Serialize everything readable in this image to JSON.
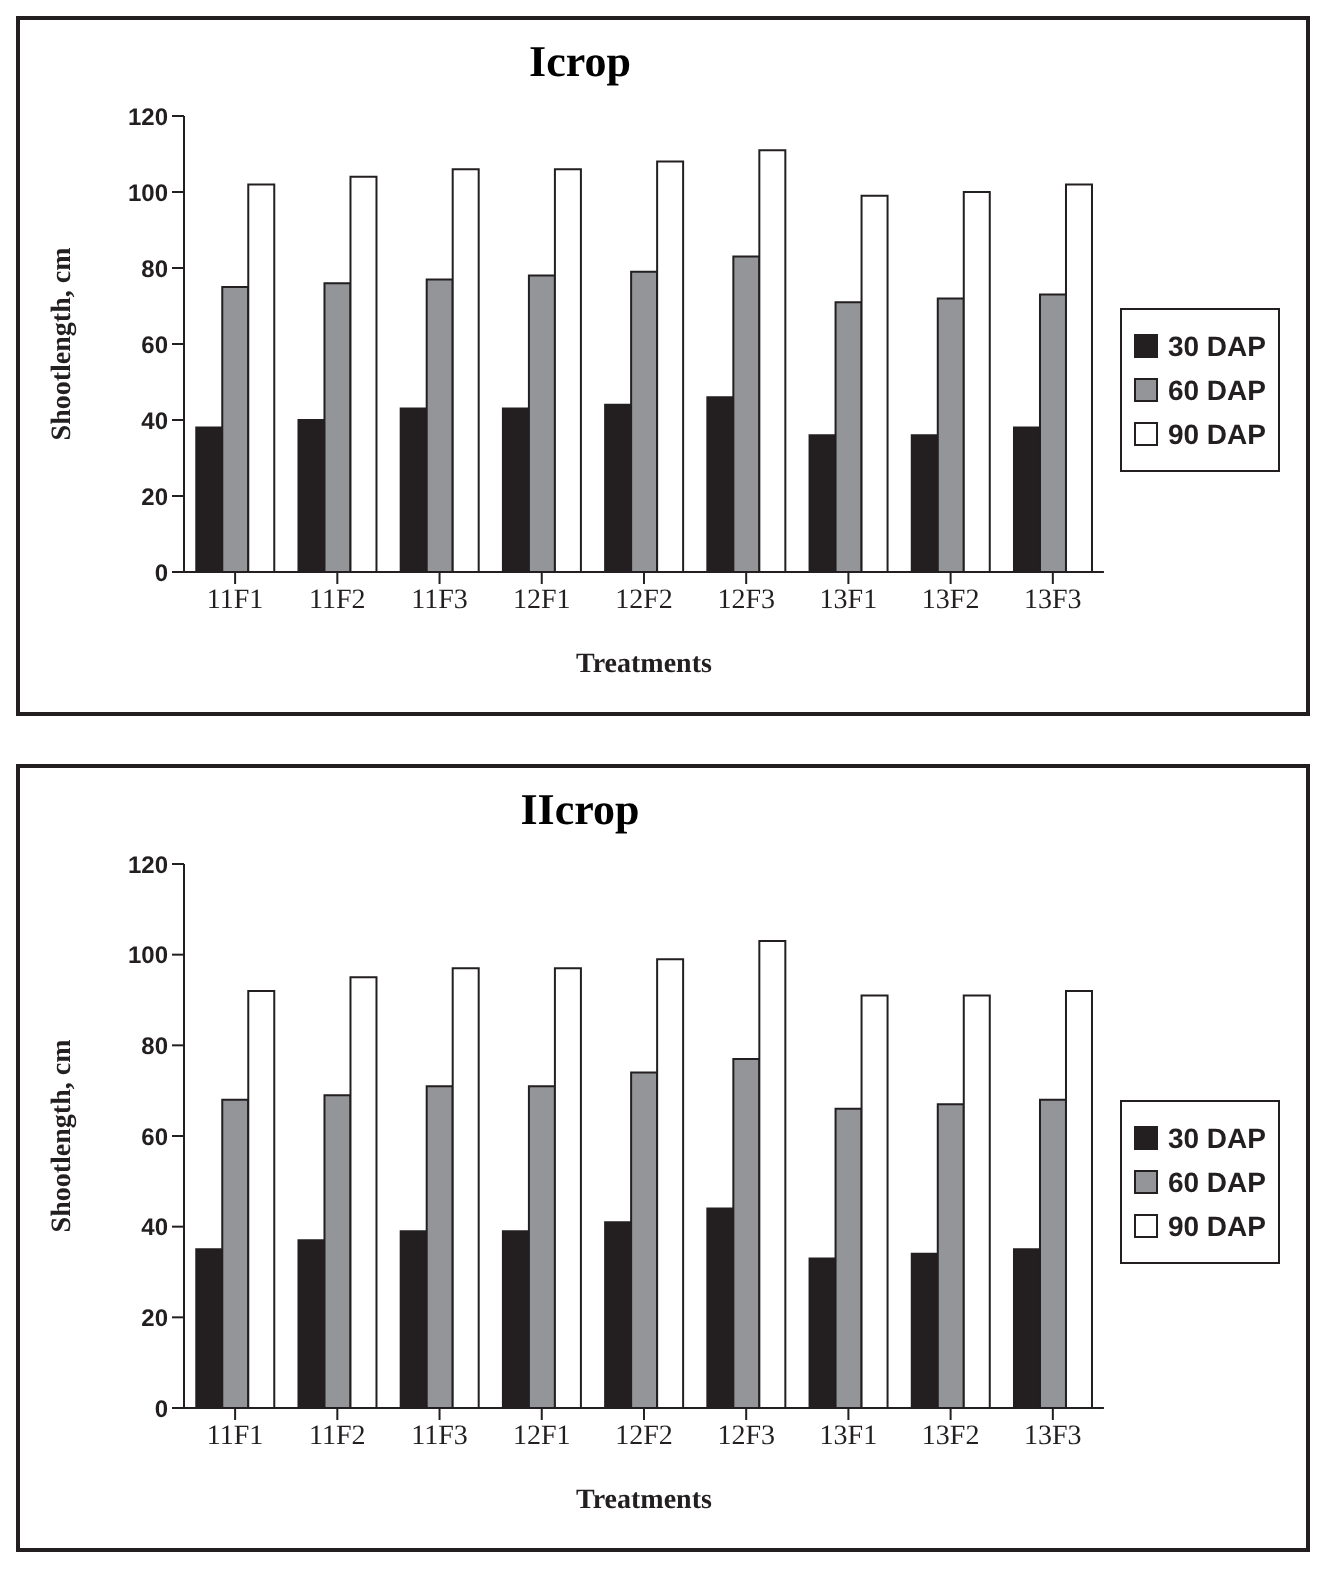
{
  "chart_data": [
    {
      "type": "bar",
      "title": "Icrop",
      "xlabel": "Treatments",
      "ylabel": "Shootlength, cm",
      "categories": [
        "11F1",
        "11F2",
        "11F3",
        "12F1",
        "12F2",
        "12F3",
        "13F1",
        "13F2",
        "13F3"
      ],
      "ylim": [
        0,
        120
      ],
      "yticks": [
        0,
        20,
        40,
        60,
        80,
        100,
        120
      ],
      "grid": false,
      "legend": "right",
      "series": [
        {
          "name": "30 DAP",
          "color": "#231f20",
          "values": [
            38,
            40,
            43,
            43,
            44,
            46,
            36,
            36,
            38
          ]
        },
        {
          "name": "60 DAP",
          "color": "#939598",
          "values": [
            75,
            76,
            77,
            78,
            79,
            83,
            71,
            72,
            73
          ]
        },
        {
          "name": "90 DAP",
          "color": "#ffffff",
          "values": [
            102,
            104,
            106,
            106,
            108,
            111,
            99,
            100,
            102
          ]
        }
      ]
    },
    {
      "type": "bar",
      "title": "IIcrop",
      "xlabel": "Treatments",
      "ylabel": "Shootlength, cm",
      "categories": [
        "11F1",
        "11F2",
        "11F3",
        "12F1",
        "12F2",
        "12F3",
        "13F1",
        "13F2",
        "13F3"
      ],
      "ylim": [
        0,
        120
      ],
      "yticks": [
        0,
        20,
        40,
        60,
        80,
        100,
        120
      ],
      "grid": false,
      "legend": "right",
      "series": [
        {
          "name": "30 DAP",
          "color": "#231f20",
          "values": [
            35,
            37,
            39,
            39,
            41,
            44,
            33,
            34,
            35
          ]
        },
        {
          "name": "60 DAP",
          "color": "#939598",
          "values": [
            68,
            69,
            71,
            71,
            74,
            77,
            66,
            67,
            68
          ]
        },
        {
          "name": "90 DAP",
          "color": "#ffffff",
          "values": [
            92,
            95,
            97,
            97,
            99,
            103,
            91,
            91,
            92
          ]
        }
      ]
    }
  ]
}
